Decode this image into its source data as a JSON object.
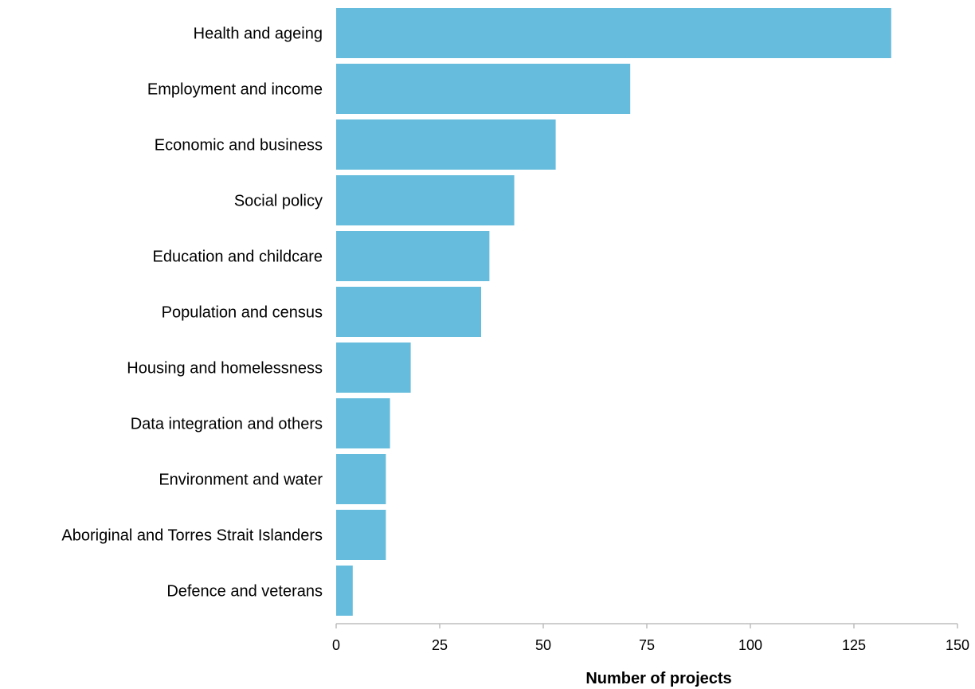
{
  "chart_data": {
    "type": "bar",
    "orientation": "horizontal",
    "xlabel": "Number of projects",
    "ylabel": "",
    "xlim": [
      0,
      150
    ],
    "x_ticks": [
      0,
      25,
      50,
      75,
      100,
      125,
      150
    ],
    "grid": false,
    "bar_color": "#66bcdc",
    "categories": [
      "Health and ageing",
      "Employment and income",
      "Economic and business",
      "Social policy",
      "Education and childcare",
      "Population and census",
      "Housing and homelessness",
      "Data integration and others",
      "Environment and water",
      "Aboriginal and Torres Strait Islanders",
      "Defence and veterans"
    ],
    "values": [
      134,
      71,
      53,
      43,
      37,
      35,
      18,
      13,
      12,
      12,
      4
    ]
  }
}
